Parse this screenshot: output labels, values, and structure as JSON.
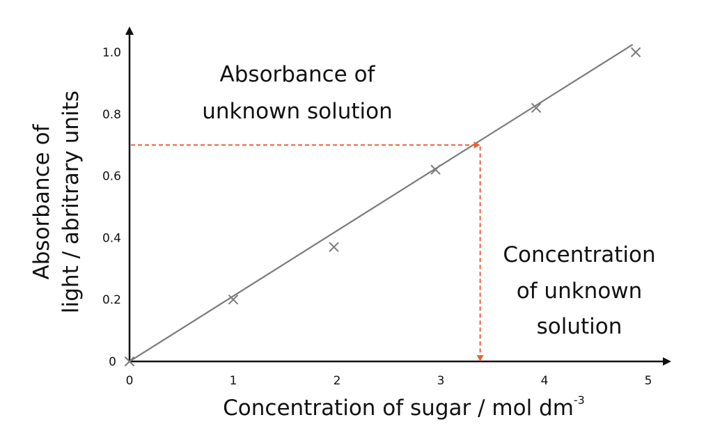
{
  "chart_data": {
    "type": "scatter",
    "title": "",
    "xlabel": "Concentration of sugar / mol dm",
    "xlabel_superscript": "-3",
    "ylabel_line1": "Absorbance of",
    "ylabel_line2": "light / abritrary units",
    "xlim": [
      0,
      5
    ],
    "ylim": [
      0,
      1.0
    ],
    "x_ticks": [
      {
        "value": 0,
        "label": "0"
      },
      {
        "value": 1,
        "label": "1"
      },
      {
        "value": 2,
        "label": "2"
      },
      {
        "value": 3,
        "label": "3"
      },
      {
        "value": 4,
        "label": "4"
      },
      {
        "value": 5,
        "label": "5"
      }
    ],
    "y_ticks": [
      {
        "value": 0,
        "label": "0"
      },
      {
        "value": 0.2,
        "label": "0.2"
      },
      {
        "value": 0.4,
        "label": "0.4"
      },
      {
        "value": 0.6,
        "label": "0.6"
      },
      {
        "value": 0.8,
        "label": "0.8"
      },
      {
        "value": 1.0,
        "label": "1.0"
      }
    ],
    "points": [
      {
        "x": 0,
        "y": 0
      },
      {
        "x": 1,
        "y": 0.2
      },
      {
        "x": 1.97,
        "y": 0.37
      },
      {
        "x": 2.95,
        "y": 0.62
      },
      {
        "x": 3.92,
        "y": 0.82
      },
      {
        "x": 4.88,
        "y": 1.0
      }
    ],
    "best_fit_line": {
      "x0": 0,
      "y0": 0,
      "x1": 4.85,
      "y1": 1.025
    },
    "unknown": {
      "x": 3.38,
      "y": 0.7
    },
    "annotations": {
      "absorbance_line1": "Absorbance of",
      "absorbance_line2": "unknown solution",
      "concentration_line1": "Concentration",
      "concentration_line2": "of unknown",
      "concentration_line3": "solution"
    },
    "grid": false,
    "legend": "none",
    "colors": {
      "axis": "#111111",
      "data": "#7a7a7a",
      "guide": "#e8623a",
      "text": "#111111"
    }
  }
}
